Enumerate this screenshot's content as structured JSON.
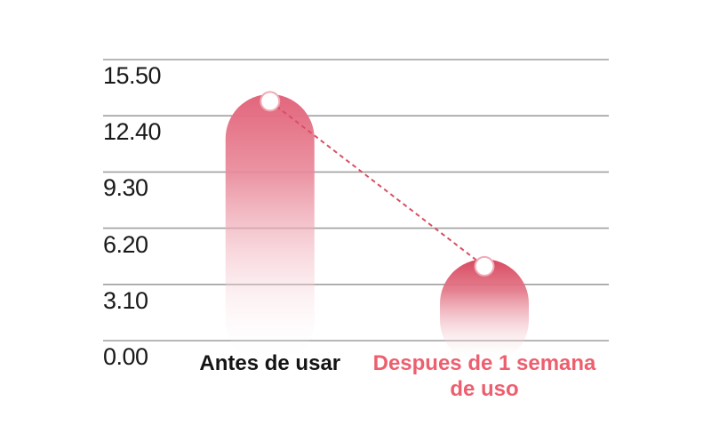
{
  "chart_data": {
    "type": "bar",
    "title": "",
    "xlabel": "",
    "ylabel": "",
    "categories": [
      "Antes de usar",
      "Despues de 1 semana de uso"
    ],
    "values": [
      13.2,
      4.1
    ],
    "ylim": [
      0,
      15.5
    ],
    "grid": "horizontal-gridlines",
    "legend": "none",
    "background": "#ffffff",
    "gridline_color": "#9f9f9f",
    "yticks": [
      {
        "label": "15.50",
        "value": 15.5
      },
      {
        "label": "12.40",
        "value": 12.4
      },
      {
        "label": "9.30",
        "value": 9.3
      },
      {
        "label": "6.20",
        "value": 6.2
      },
      {
        "label": "3.10",
        "value": 3.1
      },
      {
        "label": "0.00",
        "value": 0.0
      }
    ],
    "bars": [
      {
        "label": "Antes de usar",
        "value": 13.2,
        "top_color": "#e2657b",
        "label_color": "#141414"
      },
      {
        "label": "Despues de 1 semana de uso",
        "value": 4.1,
        "top_color": "#d8485f",
        "label_color": "#ed5f6e"
      }
    ],
    "connector": {
      "style": "dashed",
      "color": "#d94f63"
    },
    "marker": {
      "fill": "#ffffff",
      "stroke": "#f0aab5"
    }
  }
}
